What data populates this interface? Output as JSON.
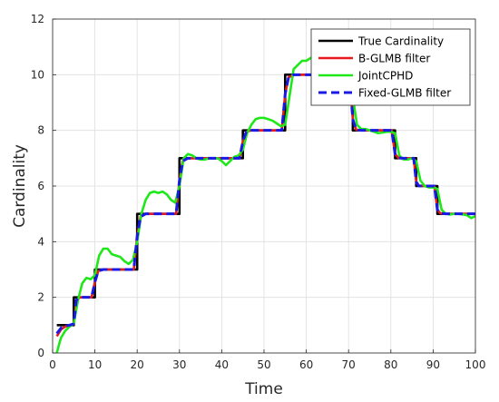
{
  "chart_data": {
    "type": "line",
    "xlabel": "Time",
    "ylabel": "Cardinality",
    "xlim": [
      0,
      100
    ],
    "ylim": [
      0,
      12
    ],
    "xticks": [
      0,
      10,
      20,
      30,
      40,
      50,
      60,
      70,
      80,
      90,
      100
    ],
    "yticks": [
      0,
      2,
      4,
      6,
      8,
      10,
      12
    ],
    "grid": true,
    "legend_position": "top-right",
    "series": [
      {
        "name": "True Cardinality",
        "color": "#000000",
        "style": "solid",
        "step": true,
        "x": [
          1,
          5,
          10,
          20,
          30,
          45,
          55,
          71,
          81,
          86,
          91,
          100
        ],
        "y": [
          1,
          2,
          3,
          5,
          7,
          8,
          10,
          8,
          7,
          6,
          5,
          5
        ]
      },
      {
        "name": "B-GLMB filter",
        "color": "#e8191a",
        "style": "solid",
        "step": false,
        "x": [
          1,
          2,
          3,
          4,
          5,
          5.6,
          6.5,
          9.2,
          10,
          10.8,
          12,
          19.2,
          20,
          20.8,
          22,
          29.2,
          30,
          30.8,
          32,
          44.2,
          45,
          45.8,
          47,
          54.2,
          55,
          55.8,
          57,
          70.2,
          71,
          71.8,
          73,
          80.2,
          81,
          81.8,
          83,
          85.4,
          86,
          86.6,
          88,
          90.3,
          91,
          91.7,
          93,
          100
        ],
        "y": [
          0.6,
          0.85,
          0.95,
          1,
          1.05,
          1.9,
          2,
          2,
          2.55,
          2.95,
          3,
          3,
          4.2,
          4.9,
          5,
          5,
          6.2,
          6.9,
          7,
          7,
          7.6,
          7.95,
          8,
          8,
          9.3,
          9.9,
          10,
          10,
          8.4,
          8.02,
          8,
          8,
          7.15,
          7.01,
          7,
          7,
          6.15,
          6.01,
          6,
          6,
          5.15,
          5.02,
          5,
          5
        ]
      },
      {
        "name": "JointCPHD",
        "color": "#1ee81a",
        "style": "solid",
        "step": false,
        "x": [
          1,
          1.5,
          2,
          3,
          4,
          5,
          6,
          7,
          8,
          9,
          10,
          11,
          12,
          13,
          14,
          15,
          16,
          17,
          18,
          19,
          20,
          21,
          22,
          23,
          24,
          25,
          26,
          27,
          28,
          29,
          30,
          31,
          32,
          33,
          34,
          35,
          36,
          37,
          38,
          39,
          40,
          41,
          42,
          43,
          44,
          45,
          46,
          47,
          48,
          49,
          50,
          51,
          52,
          53,
          54,
          55,
          56,
          57,
          58,
          59,
          60,
          61,
          62,
          63,
          64,
          65,
          66,
          67,
          68,
          69,
          70,
          71,
          72,
          73,
          74,
          75,
          76,
          77,
          78,
          79,
          80,
          81,
          82,
          83,
          84,
          85,
          86,
          87,
          88,
          89,
          90,
          91,
          92,
          93,
          94,
          95,
          96,
          97,
          98,
          99,
          100
        ],
        "y": [
          0,
          0.3,
          0.55,
          0.8,
          0.95,
          1.05,
          1.9,
          2.5,
          2.7,
          2.65,
          2.8,
          3.5,
          3.75,
          3.75,
          3.55,
          3.5,
          3.45,
          3.3,
          3.2,
          3.35,
          4.0,
          5.0,
          5.5,
          5.75,
          5.8,
          5.75,
          5.8,
          5.7,
          5.5,
          5.4,
          6.0,
          7.0,
          7.15,
          7.1,
          7.0,
          6.95,
          6.95,
          7.0,
          7.0,
          7.0,
          6.9,
          6.75,
          6.9,
          7.05,
          7.1,
          7.3,
          7.9,
          8.2,
          8.4,
          8.45,
          8.45,
          8.4,
          8.35,
          8.25,
          8.15,
          8.2,
          9.2,
          10.2,
          10.35,
          10.5,
          10.5,
          10.6,
          10.5,
          10.4,
          10.3,
          10.3,
          10.25,
          10.2,
          10.15,
          10.1,
          10.0,
          9.2,
          8.2,
          8.05,
          8.05,
          8.0,
          7.95,
          7.9,
          7.92,
          7.95,
          7.95,
          7.9,
          7.1,
          6.95,
          6.95,
          7.0,
          6.9,
          6.2,
          6.0,
          5.95,
          5.95,
          5.9,
          5.15,
          5.0,
          4.98,
          5.0,
          5.0,
          4.98,
          4.95,
          4.85,
          4.92
        ]
      },
      {
        "name": "Fixed-GLMB filter",
        "color": "#1a1ae6",
        "style": "dashed",
        "step": false,
        "x": [
          1,
          2,
          3,
          4,
          5,
          5.6,
          6.5,
          9.2,
          10,
          10.8,
          12,
          19.2,
          20,
          20.8,
          22,
          29.2,
          30,
          30.8,
          32,
          44.2,
          45,
          45.8,
          47,
          54.2,
          55,
          55.8,
          57,
          70.2,
          71,
          71.8,
          73,
          80.2,
          81,
          81.8,
          83,
          85.4,
          86,
          86.6,
          88,
          90.3,
          91,
          91.7,
          93,
          100
        ],
        "y": [
          0.7,
          0.9,
          0.98,
          1.0,
          1.05,
          1.9,
          2.0,
          2.0,
          2.55,
          2.95,
          3.0,
          3.0,
          4.2,
          4.9,
          5.0,
          5.0,
          6.2,
          6.9,
          7.0,
          7.0,
          7.6,
          7.95,
          8.0,
          8.0,
          9.3,
          9.9,
          10.0,
          10.0,
          8.4,
          8.02,
          8.0,
          8.0,
          7.15,
          7.01,
          7.0,
          7.0,
          6.15,
          6.01,
          6.0,
          6.0,
          5.15,
          5.02,
          5.0,
          5.0
        ]
      }
    ]
  }
}
